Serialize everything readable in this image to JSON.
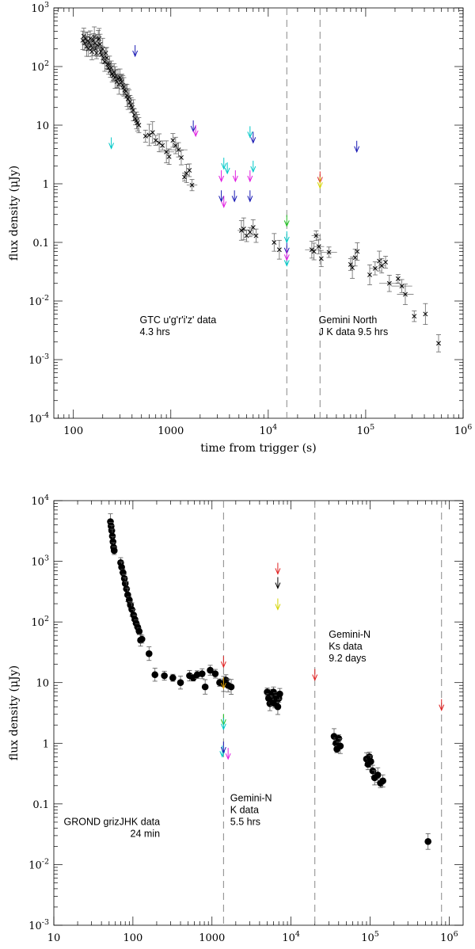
{
  "chart_data": [
    {
      "type": "scatter",
      "xlabel": "time from trigger (s)",
      "ylabel": "flux density (μJy)",
      "xscale": "log",
      "yscale": "log",
      "xlim": [
        63,
        1000000
      ],
      "ylim": [
        0.0001,
        1000
      ],
      "xtick_labels": [
        {
          "v": 100,
          "t": "100"
        },
        {
          "v": 1000,
          "t": "1000"
        },
        {
          "v": 10000,
          "t": "10",
          "e": "4"
        },
        {
          "v": 100000,
          "t": "10",
          "e": "5"
        },
        {
          "v": 1000000,
          "t": "10",
          "e": "6"
        }
      ],
      "ytick_labels": [
        {
          "v": 0.0001,
          "t": "10",
          "e": "-4"
        },
        {
          "v": 0.001,
          "t": "10",
          "e": "-3"
        },
        {
          "v": 0.01,
          "t": "10",
          "e": "-2"
        },
        {
          "v": 0.1,
          "t": "0.1"
        },
        {
          "v": 1,
          "t": "1"
        },
        {
          "v": 10,
          "t": "10"
        },
        {
          "v": 100,
          "t": "10",
          "e": "2"
        },
        {
          "v": 1000,
          "t": "10",
          "e": "3"
        }
      ],
      "vlines": [
        15500,
        34000
      ],
      "annotations": [
        {
          "lines": [
            "GTC u'g'r'i'z' data",
            "4.3 hrs"
          ],
          "x": 480,
          "y": 0.0042,
          "anchor": "start"
        },
        {
          "lines": [
            "Gemini North",
            "J K data 9.5 hrs"
          ],
          "x": 33000,
          "y": 0.0042,
          "anchor": "start"
        }
      ],
      "series": [
        {
          "marker": "cross",
          "color": "#000000",
          "points": [
            [
              125,
              280
            ],
            [
              128,
              330
            ],
            [
              131,
              250
            ],
            [
              134,
              300
            ],
            [
              137,
              220
            ],
            [
              140,
              270
            ],
            [
              143,
              200
            ],
            [
              146,
              260
            ],
            [
              149,
              300
            ],
            [
              152,
              230
            ],
            [
              155,
              180
            ],
            [
              158,
              210
            ],
            [
              161,
              280
            ],
            [
              164,
              320
            ],
            [
              167,
              250
            ],
            [
              170,
              200
            ],
            [
              173,
              170
            ],
            [
              176,
              230
            ],
            [
              180,
              290
            ],
            [
              184,
              300
            ],
            [
              188,
              240
            ],
            [
              192,
              180
            ],
            [
              196,
              160
            ],
            [
              200,
              200
            ],
            [
              205,
              140
            ],
            [
              210,
              120
            ],
            [
              215,
              170
            ],
            [
              220,
              140
            ],
            [
              225,
              110
            ],
            [
              230,
              95
            ],
            [
              235,
              110
            ],
            [
              240,
              85
            ],
            [
              245,
              95
            ],
            [
              250,
              75
            ],
            [
              256,
              70
            ],
            [
              262,
              80
            ],
            [
              268,
              65
            ],
            [
              274,
              70
            ],
            [
              280,
              55
            ],
            [
              287,
              62
            ],
            [
              294,
              50
            ],
            [
              301,
              65
            ],
            [
              308,
              60
            ],
            [
              315,
              55
            ],
            [
              322,
              48
            ],
            [
              330,
              45
            ],
            [
              338,
              40
            ],
            [
              346,
              38
            ],
            [
              355,
              32
            ],
            [
              364,
              28
            ],
            [
              373,
              30
            ],
            [
              382,
              25
            ],
            [
              392,
              22
            ],
            [
              402,
              20
            ],
            [
              412,
              18
            ],
            [
              423,
              15
            ],
            [
              434,
              13
            ],
            [
              445,
              12
            ],
            [
              456,
              11
            ],
            [
              470,
              10
            ]
          ]
        },
        {
          "marker": "xerr",
          "color": "#000000",
          "points": [
            [
              550,
              6.5
            ],
            [
              600,
              6.8
            ],
            [
              650,
              7.5
            ],
            [
              700,
              5.5
            ],
            [
              760,
              5.0
            ],
            [
              820,
              4.5
            ],
            [
              900,
              3.5
            ],
            [
              960,
              2.9
            ],
            [
              1050,
              5.5
            ],
            [
              1120,
              4.5
            ],
            [
              1200,
              3.8
            ],
            [
              1280,
              2.8
            ],
            [
              1380,
              1.3
            ],
            [
              1450,
              1.5
            ],
            [
              1550,
              1.7
            ],
            [
              1650,
              0.95
            ],
            [
              5300,
              0.16
            ],
            [
              5600,
              0.17
            ],
            [
              6000,
              0.13
            ],
            [
              6500,
              0.15
            ],
            [
              7000,
              0.18
            ],
            [
              7500,
              0.13
            ],
            [
              11500,
              0.1
            ],
            [
              13000,
              0.075
            ],
            [
              28000,
              0.075
            ],
            [
              29500,
              0.07
            ],
            [
              31000,
              0.13
            ],
            [
              33000,
              0.085
            ],
            [
              35000,
              0.053
            ],
            [
              42000,
              0.068
            ],
            [
              70000,
              0.042
            ],
            [
              73000,
              0.037
            ],
            [
              78000,
              0.055
            ],
            [
              82000,
              0.07
            ],
            [
              110000,
              0.028
            ],
            [
              125000,
              0.036
            ],
            [
              138000,
              0.048
            ],
            [
              146000,
              0.04
            ],
            [
              160000,
              0.046
            ],
            [
              175000,
              0.02
            ],
            [
              215000,
              0.024
            ],
            [
              235000,
              0.018
            ],
            [
              255000,
              0.013
            ],
            [
              315000,
              0.0055
            ],
            [
              410000,
              0.006
            ],
            [
              560000,
              0.0019
            ]
          ]
        },
        {
          "marker": "arrow",
          "color": "#1a1ab4",
          "points": [
            [
              430,
              150
            ],
            [
              1700,
              7.8
            ],
            [
              3300,
              0.5
            ],
            [
              4500,
              0.5
            ],
            [
              6500,
              0.5
            ],
            [
              7000,
              5.0
            ],
            [
              81000,
              3.5
            ],
            [
              15500,
              0.065
            ]
          ]
        },
        {
          "marker": "arrow",
          "color": "#00c8c8",
          "points": [
            [
              245,
              4.0
            ],
            [
              3500,
              1.8
            ],
            [
              3800,
              1.5
            ],
            [
              6500,
              6.2
            ],
            [
              7000,
              1.6
            ],
            [
              15500,
              0.1
            ],
            [
              15500,
              0.04
            ]
          ]
        },
        {
          "marker": "arrow",
          "color": "#e01ee0",
          "points": [
            [
              1800,
              6.5
            ],
            [
              3300,
              1.1
            ],
            [
              3500,
              0.4
            ],
            [
              4600,
              1.1
            ],
            [
              6500,
              1.1
            ],
            [
              15500,
              0.05
            ]
          ]
        },
        {
          "marker": "arrow",
          "color": "#e02020",
          "points": [
            [
              34000,
              1.05
            ]
          ]
        },
        {
          "marker": "arrow",
          "color": "#d4d400",
          "points": [
            [
              34000,
              0.85
            ]
          ]
        },
        {
          "marker": "arrow",
          "color": "#20c020",
          "points": [
            [
              15500,
              0.19
            ]
          ]
        }
      ]
    },
    {
      "type": "scatter",
      "xlabel": "time from trigger (s)",
      "ylabel": "flux density (μJy)",
      "xscale": "log",
      "yscale": "log",
      "xlim": [
        10,
        1500000
      ],
      "ylim": [
        0.001,
        10000
      ],
      "xtick_labels": [
        {
          "v": 10,
          "t": "10"
        },
        {
          "v": 100,
          "t": "100"
        },
        {
          "v": 1000,
          "t": "1000"
        },
        {
          "v": 10000,
          "t": "10",
          "e": "4"
        },
        {
          "v": 100000,
          "t": "10",
          "e": "5"
        },
        {
          "v": 1000000,
          "t": "10",
          "e": "6"
        }
      ],
      "ytick_labels": [
        {
          "v": 0.001,
          "t": "10",
          "e": "-3"
        },
        {
          "v": 0.01,
          "t": "10",
          "e": "-2"
        },
        {
          "v": 0.1,
          "t": "0.1"
        },
        {
          "v": 1,
          "t": "1"
        },
        {
          "v": 10,
          "t": "10"
        },
        {
          "v": 100,
          "t": "10",
          "e": "2"
        },
        {
          "v": 1000,
          "t": "10",
          "e": "3"
        },
        {
          "v": 10000,
          "t": "10",
          "e": "4"
        }
      ],
      "vlines": [
        1400,
        20000,
        800000
      ],
      "annotations": [
        {
          "lines": [
            "GROND grizJHK data",
            "24 min"
          ],
          "x": 220,
          "y": 0.045,
          "anchor": "end"
        },
        {
          "lines": [
            "Gemini-N",
            "K data",
            "5.5 hrs"
          ],
          "x": 1700,
          "y": 0.11,
          "anchor": "start"
        },
        {
          "lines": [
            "Gemini-N",
            "Ks data",
            "9.2 days"
          ],
          "x": 30000,
          "y": 55,
          "anchor": "start"
        }
      ],
      "series": [
        {
          "marker": "dot",
          "color": "#000000",
          "points": [
            [
              52,
              4500
            ],
            [
              53,
              3800
            ],
            [
              54,
              3200
            ],
            [
              55,
              2600
            ],
            [
              56,
              2100
            ],
            [
              57,
              1700
            ],
            [
              58,
              1500
            ],
            [
              70,
              950
            ],
            [
              72,
              800
            ],
            [
              75,
              650
            ],
            [
              78,
              520
            ],
            [
              80,
              430
            ],
            [
              83,
              350
            ],
            [
              86,
              280
            ],
            [
              90,
              230
            ],
            [
              93,
              190
            ],
            [
              97,
              160
            ],
            [
              102,
              130
            ],
            [
              106,
              110
            ],
            [
              110,
              95
            ],
            [
              115,
              82
            ],
            [
              120,
              70
            ],
            [
              125,
              50
            ],
            [
              130,
              52
            ],
            [
              160,
              30
            ],
            [
              190,
              13.5
            ],
            [
              250,
              13
            ],
            [
              320,
              12
            ],
            [
              400,
              10
            ],
            [
              520,
              13
            ],
            [
              580,
              12
            ],
            [
              650,
              13.5
            ],
            [
              750,
              14
            ],
            [
              820,
              8.5
            ],
            [
              950,
              16
            ],
            [
              1100,
              14
            ],
            [
              1250,
              10
            ],
            [
              1400,
              9.5
            ],
            [
              1500,
              11
            ],
            [
              1600,
              9
            ],
            [
              1750,
              8.5
            ],
            [
              5000,
              7
            ],
            [
              5200,
              5.5
            ],
            [
              5400,
              4.5
            ],
            [
              5600,
              6
            ],
            [
              5800,
              5
            ],
            [
              6000,
              7
            ],
            [
              6200,
              4.5
            ],
            [
              6400,
              6
            ],
            [
              6600,
              5
            ],
            [
              6800,
              4
            ],
            [
              7000,
              5.5
            ],
            [
              7200,
              6.5
            ],
            [
              35000,
              1.3
            ],
            [
              37000,
              1.0
            ],
            [
              38000,
              0.8
            ],
            [
              40000,
              1.2
            ],
            [
              42000,
              0.9
            ],
            [
              90000,
              0.55
            ],
            [
              94000,
              0.45
            ],
            [
              98000,
              0.6
            ],
            [
              102000,
              0.5
            ],
            [
              108000,
              0.35
            ],
            [
              114000,
              0.27
            ],
            [
              125000,
              0.3
            ],
            [
              135000,
              0.22
            ],
            [
              145000,
              0.24
            ],
            [
              540000,
              0.024
            ]
          ]
        },
        {
          "marker": "arrow",
          "color": "#e02020",
          "points": [
            [
              1400,
              18
            ],
            [
              6800,
              620
            ],
            [
              20000,
              11
            ],
            [
              800000,
              3.5
            ]
          ]
        },
        {
          "marker": "arrow",
          "color": "#000000",
          "points": [
            [
              6800,
              360
            ]
          ]
        },
        {
          "marker": "arrow",
          "color": "#d4d400",
          "points": [
            [
              6800,
              160
            ]
          ]
        },
        {
          "marker": "arrow",
          "color": "#e0a000",
          "points": [
            [
              1400,
              8
            ]
          ]
        },
        {
          "marker": "arrow",
          "color": "#20c020",
          "points": [
            [
              1400,
              2.0
            ]
          ]
        },
        {
          "marker": "arrow",
          "color": "#00c8c8",
          "points": [
            [
              1400,
              1.7
            ],
            [
              1350,
              0.6
            ]
          ]
        },
        {
          "marker": "arrow",
          "color": "#1a1ab4",
          "points": [
            [
              1400,
              0.7
            ]
          ]
        },
        {
          "marker": "arrow",
          "color": "#e01ee0",
          "points": [
            [
              1600,
              0.55
            ]
          ]
        }
      ]
    }
  ]
}
